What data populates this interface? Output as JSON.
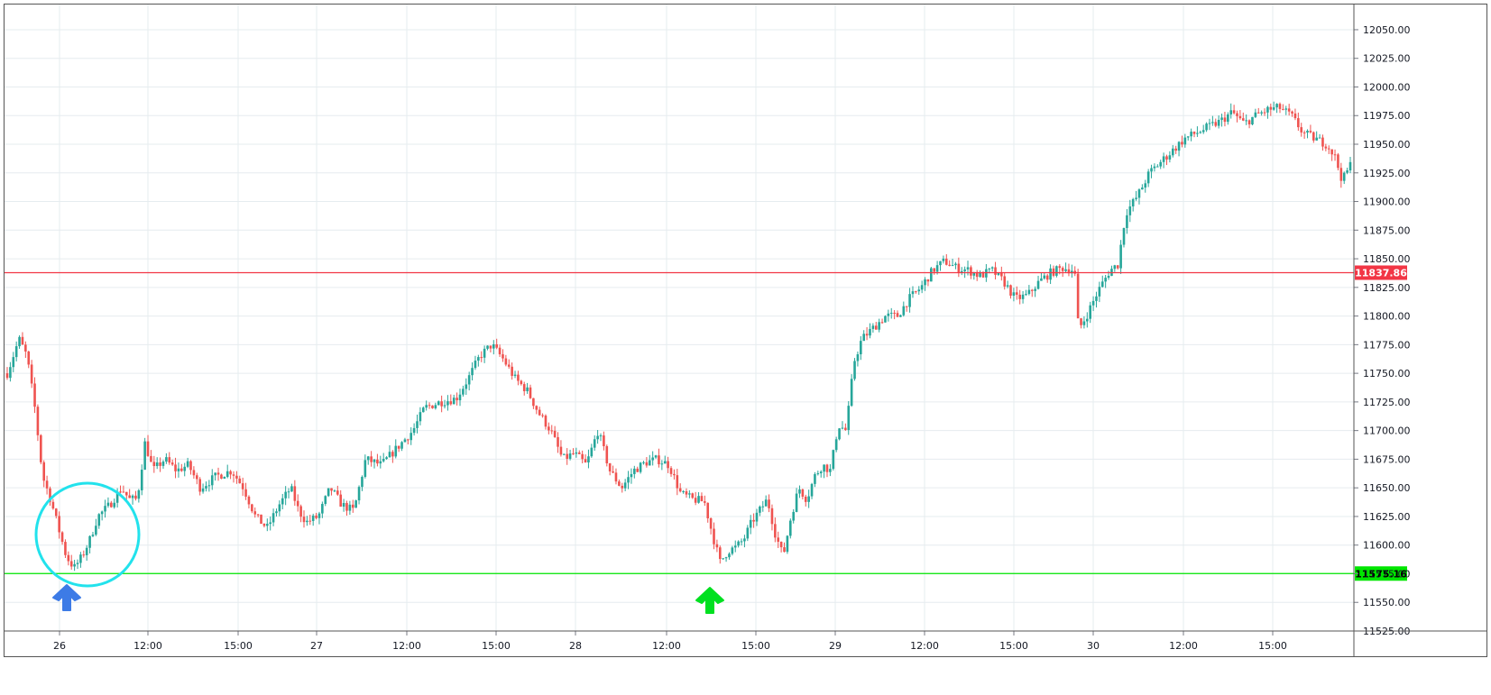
{
  "chart_data": {
    "type": "candlestick",
    "timeframe_days": [
      "26",
      "27",
      "28",
      "29",
      "30"
    ],
    "x_tick_labels": [
      "26",
      "12:00",
      "15:00",
      "27",
      "12:00",
      "15:00",
      "28",
      "12:00",
      "15:00",
      "29",
      "12:00",
      "15:00",
      "30",
      "12:00",
      "15:00"
    ],
    "y_tick_labels": [
      "12050.00",
      "12025.00",
      "12000.00",
      "11975.00",
      "11950.00",
      "11925.00",
      "11900.00",
      "11875.00",
      "11850.00",
      "11825.00",
      "11800.00",
      "11775.00",
      "11750.00",
      "11725.00",
      "11700.00",
      "11675.00",
      "11650.00",
      "11625.00",
      "11600.00",
      "11575.00",
      "11550.00",
      "11525.00"
    ],
    "ylim": [
      11525,
      12072
    ],
    "grid": true,
    "up_color": "#26a69a",
    "down_color": "#ef5350",
    "price_path": [
      [
        0,
        11750
      ],
      [
        3,
        11780
      ],
      [
        5,
        11765
      ],
      [
        7,
        11720
      ],
      [
        9,
        11660
      ],
      [
        11,
        11640
      ],
      [
        13,
        11615
      ],
      [
        15,
        11590
      ],
      [
        17,
        11580
      ],
      [
        19,
        11590
      ],
      [
        21,
        11605
      ],
      [
        23,
        11625
      ],
      [
        26,
        11635
      ],
      [
        29,
        11650
      ],
      [
        31,
        11640
      ],
      [
        33,
        11640
      ],
      [
        35,
        11690
      ],
      [
        37,
        11665
      ],
      [
        40,
        11675
      ],
      [
        43,
        11665
      ],
      [
        46,
        11670
      ],
      [
        49,
        11650
      ],
      [
        53,
        11660
      ],
      [
        57,
        11665
      ],
      [
        60,
        11650
      ],
      [
        63,
        11625
      ],
      [
        66,
        11615
      ],
      [
        69,
        11635
      ],
      [
        72,
        11650
      ],
      [
        74,
        11630
      ],
      [
        76,
        11620
      ],
      [
        79,
        11625
      ],
      [
        82,
        11650
      ],
      [
        85,
        11635
      ],
      [
        88,
        11630
      ],
      [
        91,
        11675
      ],
      [
        95,
        11670
      ],
      [
        99,
        11685
      ],
      [
        103,
        11700
      ],
      [
        106,
        11720
      ],
      [
        110,
        11725
      ],
      [
        114,
        11728
      ],
      [
        117,
        11745
      ],
      [
        120,
        11765
      ],
      [
        123,
        11775
      ],
      [
        126,
        11762
      ],
      [
        129,
        11745
      ],
      [
        132,
        11735
      ],
      [
        135,
        11715
      ],
      [
        138,
        11700
      ],
      [
        141,
        11675
      ],
      [
        144,
        11680
      ],
      [
        147,
        11670
      ],
      [
        150,
        11700
      ],
      [
        153,
        11665
      ],
      [
        156,
        11650
      ],
      [
        159,
        11665
      ],
      [
        162,
        11672
      ],
      [
        165,
        11675
      ],
      [
        168,
        11670
      ],
      [
        171,
        11645
      ],
      [
        174,
        11640
      ],
      [
        177,
        11638
      ],
      [
        179,
        11610
      ],
      [
        181,
        11585
      ],
      [
        183,
        11595
      ],
      [
        185,
        11598
      ],
      [
        187,
        11605
      ],
      [
        189,
        11620
      ],
      [
        191,
        11630
      ],
      [
        193,
        11640
      ],
      [
        195,
        11610
      ],
      [
        197,
        11590
      ],
      [
        199,
        11625
      ],
      [
        201,
        11650
      ],
      [
        203,
        11640
      ],
      [
        205,
        11660
      ],
      [
        207,
        11670
      ],
      [
        209,
        11665
      ],
      [
        211,
        11705
      ],
      [
        213,
        11700
      ],
      [
        215,
        11760
      ],
      [
        217,
        11780
      ],
      [
        220,
        11790
      ],
      [
        223,
        11800
      ],
      [
        226,
        11800
      ],
      [
        229,
        11815
      ],
      [
        232,
        11825
      ],
      [
        235,
        11840
      ],
      [
        238,
        11848
      ],
      [
        241,
        11842
      ],
      [
        244,
        11840
      ],
      [
        247,
        11835
      ],
      [
        250,
        11840
      ],
      [
        253,
        11830
      ],
      [
        256,
        11815
      ],
      [
        259,
        11818
      ],
      [
        262,
        11830
      ],
      [
        265,
        11838
      ],
      [
        268,
        11842
      ],
      [
        271,
        11840
      ],
      [
        272,
        11788
      ],
      [
        274,
        11800
      ],
      [
        277,
        11822
      ],
      [
        280,
        11840
      ],
      [
        282,
        11845
      ],
      [
        284,
        11890
      ],
      [
        287,
        11905
      ],
      [
        290,
        11925
      ],
      [
        293,
        11935
      ],
      [
        296,
        11945
      ],
      [
        299,
        11955
      ],
      [
        302,
        11960
      ],
      [
        305,
        11965
      ],
      [
        308,
        11970
      ],
      [
        311,
        11978
      ],
      [
        314,
        11968
      ],
      [
        317,
        11975
      ],
      [
        320,
        11980
      ],
      [
        323,
        11982
      ],
      [
        326,
        11975
      ],
      [
        329,
        11960
      ],
      [
        332,
        11955
      ],
      [
        335,
        11950
      ],
      [
        337,
        11940
      ],
      [
        339,
        11918
      ],
      [
        341,
        11932
      ]
    ],
    "horizontal_lines": [
      {
        "value": 11837.86,
        "label": "11837.86",
        "color": "#f23645"
      },
      {
        "value": 11575.16,
        "label": "11575.16",
        "color": "#00e600"
      }
    ],
    "annotations": [
      {
        "kind": "circle",
        "color": "#22e2ec"
      },
      {
        "kind": "arrow-up",
        "color": "#3d7be6"
      },
      {
        "kind": "arrow-up",
        "color": "#00e020"
      }
    ]
  }
}
